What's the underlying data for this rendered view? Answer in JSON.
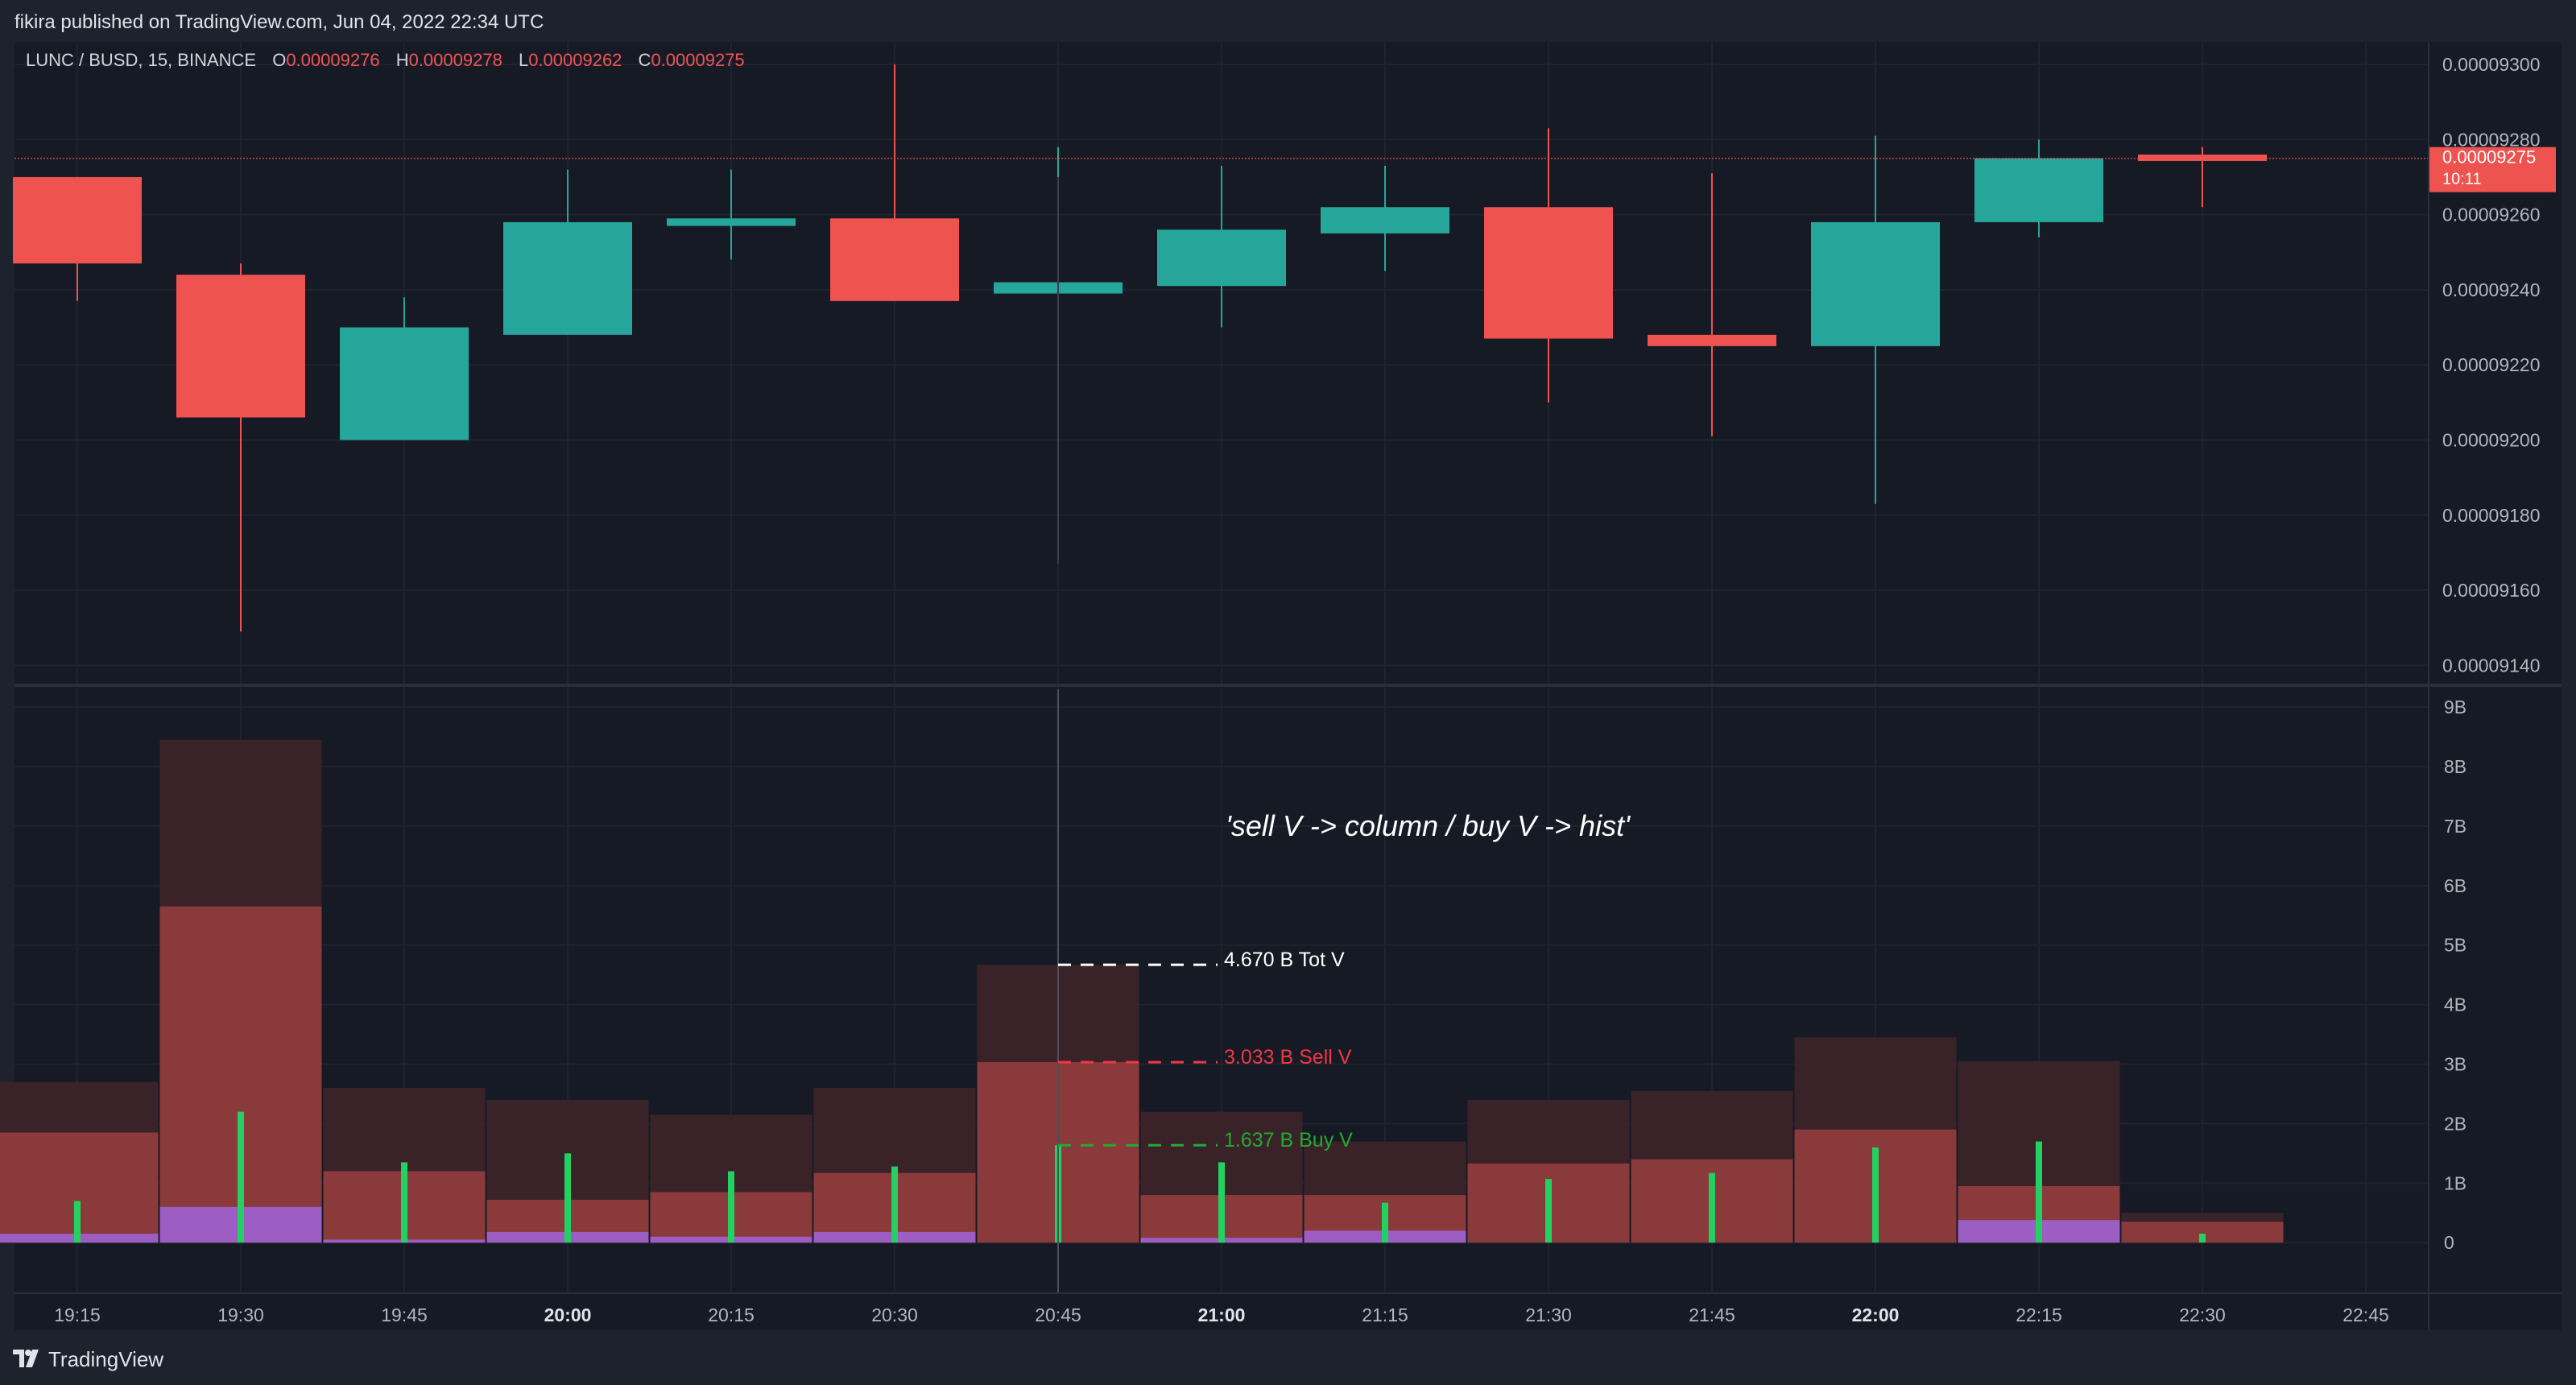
{
  "header": {
    "publisher": "fikira published on TradingView.com, Jun 04, 2022 22:34 UTC"
  },
  "symbol": {
    "name": "LUNC / BUSD, 15, BINANCE",
    "open_key": "O",
    "open": "0.00009276",
    "high_key": "H",
    "high": "0.00009278",
    "low_key": "L",
    "low": "0.00009262",
    "close_key": "C",
    "close": "0.00009275"
  },
  "last_price": {
    "price": "0.00009275",
    "countdown": "10:11",
    "value": 9.275e-05
  },
  "annotation": "'sell V -> column / buy V -> hist'",
  "footer": {
    "brand": "TradingView"
  },
  "colors": {
    "up": "#26a69a",
    "down": "#ef5350",
    "sell": "#8b3a3c",
    "total": "#3a2328",
    "buy": "#22d161",
    "purple": "#9c5ec2",
    "background": "#161a25",
    "axis_text": "#b2b5be"
  },
  "chart_data": [
    {
      "type": "candlestick",
      "price_ticks": [
        "0.00009300",
        "0.00009280",
        "0.00009260",
        "0.00009240",
        "0.00009220",
        "0.00009200",
        "0.00009180",
        "0.00009160",
        "0.00009140"
      ],
      "ylim": [
        9.136e-05,
        9.306e-05
      ],
      "time_ticks": [
        "19:15",
        "19:30",
        "19:45",
        "20:00",
        "20:15",
        "20:30",
        "20:45",
        "21:00",
        "21:15",
        "21:30",
        "21:45",
        "22:00",
        "22:15",
        "22:30",
        "22:45"
      ],
      "bold_ticks": [
        "20:00",
        "21:00",
        "22:00"
      ],
      "candles": [
        {
          "t": "19:15",
          "o": 9.27e-05,
          "h": 9.27e-05,
          "l": 9.237e-05,
          "c": 9.247e-05
        },
        {
          "t": "19:30",
          "o": 9.244e-05,
          "h": 9.247e-05,
          "l": 9.149e-05,
          "c": 9.206e-05
        },
        {
          "t": "19:45",
          "o": 9.2e-05,
          "h": 9.238e-05,
          "l": 9.2e-05,
          "c": 9.23e-05
        },
        {
          "t": "20:00",
          "o": 9.228e-05,
          "h": 9.272e-05,
          "l": 9.228e-05,
          "c": 9.258e-05
        },
        {
          "t": "20:15",
          "o": 9.257e-05,
          "h": 9.272e-05,
          "l": 9.248e-05,
          "c": 9.259e-05
        },
        {
          "t": "20:30",
          "o": 9.259e-05,
          "h": 9.3e-05,
          "l": 9.237e-05,
          "c": 9.237e-05
        },
        {
          "t": "20:45",
          "o": 9.239e-05,
          "h": 9.278e-05,
          "l": 9.171e-05,
          "c": 9.242e-05
        },
        {
          "t": "21:00",
          "o": 9.241e-05,
          "h": 9.273e-05,
          "l": 9.23e-05,
          "c": 9.256e-05
        },
        {
          "t": "21:15",
          "o": 9.255e-05,
          "h": 9.273e-05,
          "l": 9.245e-05,
          "c": 9.262e-05
        },
        {
          "t": "21:30",
          "o": 9.262e-05,
          "h": 9.283e-05,
          "l": 9.21e-05,
          "c": 9.227e-05
        },
        {
          "t": "21:45",
          "o": 9.228e-05,
          "h": 9.271e-05,
          "l": 9.201e-05,
          "c": 9.225e-05
        },
        {
          "t": "22:00",
          "o": 9.225e-05,
          "h": 9.281e-05,
          "l": 9.183e-05,
          "c": 9.258e-05
        },
        {
          "t": "22:15",
          "o": 9.258e-05,
          "h": 9.28e-05,
          "l": 9.254e-05,
          "c": 9.275e-05
        },
        {
          "t": "22:30",
          "o": 9.276e-05,
          "h": 9.278e-05,
          "l": 9.262e-05,
          "c": 9.275e-05
        }
      ]
    },
    {
      "type": "bar",
      "volume_ticks": [
        "9B",
        "8B",
        "7B",
        "6B",
        "5B",
        "4B",
        "3B",
        "2B",
        "1B",
        "0"
      ],
      "ylim_billions": [
        -0.85,
        9.3
      ],
      "categories": [
        "19:15",
        "19:30",
        "19:45",
        "20:00",
        "20:15",
        "20:30",
        "20:45",
        "21:00",
        "21:15",
        "21:30",
        "21:45",
        "22:00",
        "22:15",
        "22:30"
      ],
      "series": [
        {
          "name": "Tot V",
          "values": [
            2.7,
            8.45,
            2.6,
            2.4,
            2.15,
            2.6,
            4.67,
            2.2,
            1.7,
            2.4,
            2.55,
            3.45,
            3.05,
            0.5
          ]
        },
        {
          "name": "Sell V",
          "values": [
            1.85,
            5.65,
            1.2,
            0.72,
            0.85,
            1.17,
            3.033,
            0.8,
            0.8,
            1.33,
            1.4,
            1.9,
            0.95,
            0.35
          ]
        },
        {
          "name": "Buy V",
          "values": [
            0.7,
            2.2,
            1.35,
            1.5,
            1.2,
            1.28,
            1.637,
            1.35,
            0.67,
            1.07,
            1.17,
            1.6,
            1.7,
            0.15
          ]
        },
        {
          "values": [
            0.15,
            0.6,
            0.05,
            0.18,
            0.1,
            0.18,
            0,
            0.08,
            0.2,
            0,
            0,
            0,
            0.38,
            0
          ]
        }
      ],
      "labels": [
        {
          "text": "4.670 B Tot V",
          "value": 4.67,
          "color": "#ffffff"
        },
        {
          "text": "3.033 B Sell V",
          "value": 3.033,
          "color": "#f23645"
        },
        {
          "text": "1.637 B Buy V",
          "value": 1.637,
          "color": "#22ab2e"
        }
      ]
    }
  ]
}
